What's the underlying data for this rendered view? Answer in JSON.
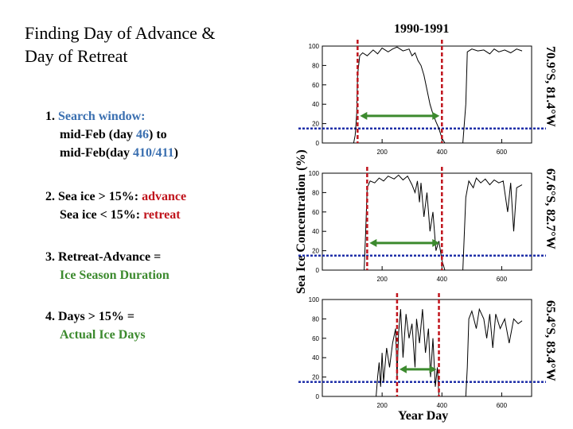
{
  "slide": {
    "title_line1": "Finding Day of Advance &",
    "title_line2": "Day of Retreat",
    "steps": [
      {
        "num": "1.",
        "text1": "Search window:",
        "text2a": "mid-Feb (day ",
        "text2b": "46",
        "text2c": ") to",
        "text3a": "mid-Feb(day ",
        "text3b": "410/411",
        "text3c": ")"
      },
      {
        "num": "2.",
        "text1a": "Sea ice > 15%: ",
        "text1b": "advance",
        "text2a": "Sea ice < 15%: ",
        "text2b": "retreat"
      },
      {
        "num": "3.",
        "text1": "Retreat-Advance =",
        "text2": "Ice Season Duration"
      },
      {
        "num": "4.",
        "text1": "Days > 15% =",
        "text2": "Actual Ice Days"
      }
    ]
  },
  "colors": {
    "accent_blue": "#3a6fb0",
    "advance_red": "#c0141c",
    "duration_green": "#3c8a2e",
    "threshold_blue": "#1f2fa8"
  },
  "chart_data": {
    "type": "line",
    "period": "1990-1991",
    "ylabel": "Sea Ice Concentration (%)",
    "xlabel": "Year Day",
    "xlim": [
      0,
      700
    ],
    "ylim": [
      0,
      100
    ],
    "x_ticks": [
      "200",
      "400",
      "600"
    ],
    "y_ticks": [
      "0",
      "20",
      "40",
      "60",
      "80",
      "100"
    ],
    "threshold": 15,
    "panels": [
      {
        "site": "70.9°S, 81.4°W",
        "advance_day": 118,
        "retreat_day": 400,
        "series": [
          [
            0,
            0
          ],
          [
            60,
            0
          ],
          [
            105,
            0
          ],
          [
            110,
            8
          ],
          [
            115,
            30
          ],
          [
            118,
            70
          ],
          [
            125,
            90
          ],
          [
            135,
            93
          ],
          [
            150,
            90
          ],
          [
            170,
            96
          ],
          [
            185,
            92
          ],
          [
            200,
            98
          ],
          [
            220,
            94
          ],
          [
            235,
            97
          ],
          [
            250,
            99
          ],
          [
            270,
            95
          ],
          [
            290,
            97
          ],
          [
            300,
            90
          ],
          [
            310,
            93
          ],
          [
            320,
            85
          ],
          [
            330,
            80
          ],
          [
            340,
            70
          ],
          [
            350,
            55
          ],
          [
            360,
            40
          ],
          [
            370,
            30
          ],
          [
            380,
            22
          ],
          [
            390,
            15
          ],
          [
            400,
            5
          ],
          [
            410,
            0
          ],
          [
            470,
            0
          ],
          [
            480,
            40
          ],
          [
            485,
            94
          ],
          [
            500,
            97
          ],
          [
            520,
            95
          ],
          [
            540,
            96
          ],
          [
            560,
            92
          ],
          [
            575,
            97
          ],
          [
            590,
            94
          ],
          [
            610,
            96
          ],
          [
            630,
            93
          ],
          [
            650,
            97
          ],
          [
            668,
            95
          ]
        ]
      },
      {
        "site": "67.6°S, 82.7°W",
        "advance_day": 150,
        "retreat_day": 400,
        "series": [
          [
            0,
            0
          ],
          [
            80,
            0
          ],
          [
            140,
            0
          ],
          [
            145,
            40
          ],
          [
            150,
            85
          ],
          [
            160,
            92
          ],
          [
            175,
            90
          ],
          [
            190,
            95
          ],
          [
            205,
            92
          ],
          [
            220,
            97
          ],
          [
            240,
            94
          ],
          [
            255,
            98
          ],
          [
            270,
            93
          ],
          [
            285,
            97
          ],
          [
            300,
            88
          ],
          [
            310,
            80
          ],
          [
            318,
            92
          ],
          [
            325,
            70
          ],
          [
            330,
            90
          ],
          [
            340,
            55
          ],
          [
            350,
            80
          ],
          [
            360,
            40
          ],
          [
            370,
            60
          ],
          [
            380,
            20
          ],
          [
            390,
            30
          ],
          [
            400,
            10
          ],
          [
            410,
            0
          ],
          [
            470,
            0
          ],
          [
            480,
            75
          ],
          [
            490,
            92
          ],
          [
            505,
            85
          ],
          [
            515,
            95
          ],
          [
            530,
            90
          ],
          [
            545,
            94
          ],
          [
            560,
            88
          ],
          [
            575,
            93
          ],
          [
            590,
            90
          ],
          [
            605,
            92
          ],
          [
            620,
            60
          ],
          [
            630,
            90
          ],
          [
            640,
            40
          ],
          [
            650,
            85
          ],
          [
            668,
            88
          ]
        ]
      },
      {
        "site": "65.4°S, 83.4°W",
        "advance_day": 250,
        "retreat_day": 390,
        "series": [
          [
            0,
            0
          ],
          [
            180,
            0
          ],
          [
            185,
            20
          ],
          [
            190,
            35
          ],
          [
            195,
            10
          ],
          [
            200,
            45
          ],
          [
            205,
            15
          ],
          [
            215,
            50
          ],
          [
            225,
            30
          ],
          [
            235,
            55
          ],
          [
            245,
            70
          ],
          [
            250,
            20
          ],
          [
            255,
            65
          ],
          [
            262,
            90
          ],
          [
            270,
            40
          ],
          [
            280,
            85
          ],
          [
            290,
            60
          ],
          [
            300,
            75
          ],
          [
            310,
            30
          ],
          [
            315,
            80
          ],
          [
            325,
            55
          ],
          [
            335,
            90
          ],
          [
            345,
            45
          ],
          [
            355,
            70
          ],
          [
            362,
            20
          ],
          [
            370,
            60
          ],
          [
            378,
            10
          ],
          [
            385,
            30
          ],
          [
            390,
            0
          ],
          [
            480,
            0
          ],
          [
            485,
            30
          ],
          [
            490,
            80
          ],
          [
            500,
            88
          ],
          [
            515,
            70
          ],
          [
            525,
            90
          ],
          [
            540,
            80
          ],
          [
            550,
            60
          ],
          [
            560,
            85
          ],
          [
            570,
            50
          ],
          [
            580,
            85
          ],
          [
            595,
            70
          ],
          [
            610,
            80
          ],
          [
            625,
            55
          ],
          [
            640,
            80
          ],
          [
            655,
            75
          ],
          [
            668,
            78
          ]
        ]
      }
    ]
  }
}
